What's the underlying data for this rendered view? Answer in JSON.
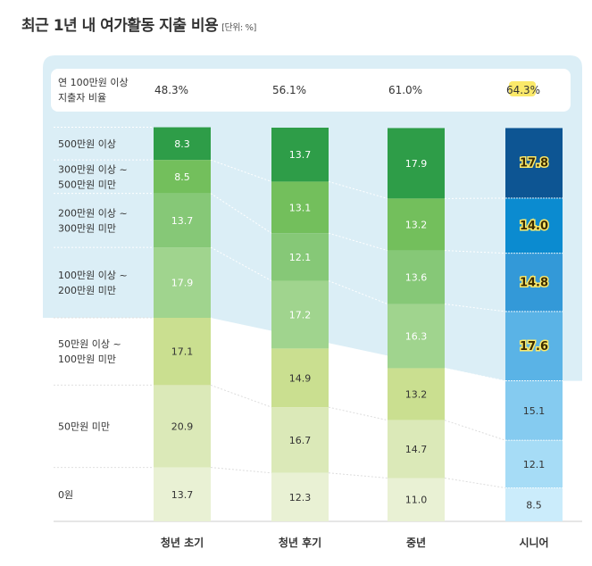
{
  "chart_data": {
    "type": "bar",
    "stacked": true,
    "title": "최근 1년 내 여가활동 지출 비용",
    "unit": "[단위: %]",
    "categories": [
      "청년 초기",
      "청년 후기",
      "중년",
      "시니어"
    ],
    "summary_row": {
      "label": [
        "연 100만원 이상",
        "지출자 비율"
      ],
      "values": [
        "48.3%",
        "56.1%",
        "61.0%",
        "64.3%"
      ],
      "highlight_index": 3
    },
    "series": [
      {
        "name": "500만원 이상",
        "label": [
          "500만원 이상"
        ],
        "values": [
          8.3,
          13.7,
          17.9,
          17.8
        ]
      },
      {
        "name": "300만원 이상 ~ 500만원 미만",
        "label": [
          "300만원 이상 ~",
          "500만원 미만"
        ],
        "values": [
          8.5,
          13.1,
          13.2,
          14.0
        ]
      },
      {
        "name": "200만원 이상 ~ 300만원 미만",
        "label": [
          "200만원 이상 ~",
          "300만원 미만"
        ],
        "values": [
          13.7,
          12.1,
          13.6,
          14.8
        ]
      },
      {
        "name": "100만원 이상 ~ 200만원 미만",
        "label": [
          "100만원 이상 ~",
          "200만원 미만"
        ],
        "values": [
          17.9,
          17.2,
          16.3,
          17.6
        ]
      },
      {
        "name": "50만원 이상 ~ 100만원 미만",
        "label": [
          "50만원 이상 ~",
          "100만원 미만"
        ],
        "values": [
          17.1,
          14.9,
          13.2,
          15.1
        ]
      },
      {
        "name": "50만원 미만",
        "label": [
          "50만원 미만"
        ],
        "values": [
          20.9,
          16.7,
          14.7,
          12.1
        ]
      },
      {
        "name": "0원",
        "label": [
          "0원"
        ],
        "values": [
          13.7,
          12.3,
          11.0,
          8.5
        ]
      }
    ],
    "colors": {
      "green": [
        "#2e9d48",
        "#73bf5c",
        "#86c877",
        "#a0d48e",
        "#cadf90",
        "#dbe9b8",
        "#e9f1d4"
      ],
      "blue": [
        "#0d5593",
        "#0b8bd0",
        "#3399d8",
        "#5ab3e6",
        "#85cbf0",
        "#a6dcf6",
        "#cbecfb"
      ],
      "panel": "#dbeef6",
      "highlight": "#fbe96a"
    },
    "highlighted_series": [
      0,
      1,
      2,
      3
    ],
    "highlighted_category": 3
  }
}
